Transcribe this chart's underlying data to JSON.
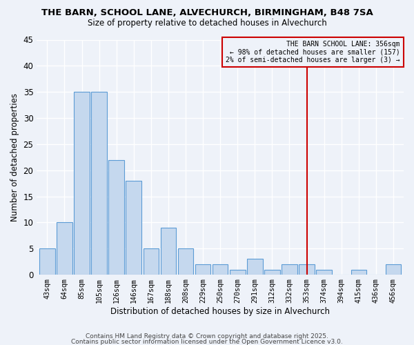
{
  "title_line1": "THE BARN, SCHOOL LANE, ALVECHURCH, BIRMINGHAM, B48 7SA",
  "title_line2": "Size of property relative to detached houses in Alvechurch",
  "xlabel": "Distribution of detached houses by size in Alvechurch",
  "ylabel": "Number of detached properties",
  "bar_labels": [
    "43sqm",
    "64sqm",
    "85sqm",
    "105sqm",
    "126sqm",
    "146sqm",
    "167sqm",
    "188sqm",
    "208sqm",
    "229sqm",
    "250sqm",
    "270sqm",
    "291sqm",
    "312sqm",
    "332sqm",
    "353sqm",
    "374sqm",
    "394sqm",
    "415sqm",
    "436sqm",
    "456sqm"
  ],
  "bar_values": [
    5,
    10,
    35,
    35,
    22,
    18,
    5,
    9,
    5,
    2,
    2,
    1,
    3,
    1,
    2,
    2,
    1,
    0,
    1,
    0,
    2
  ],
  "bar_color": "#c5d8ee",
  "bar_edge_color": "#5b9bd5",
  "vline_index": 15,
  "vline_color": "#cc0000",
  "annotation_title": "THE BARN SCHOOL LANE: 356sqm",
  "annotation_line1": "← 98% of detached houses are smaller (157)",
  "annotation_line2": "2% of semi-detached houses are larger (3) →",
  "background_color": "#eef2f9",
  "grid_color": "#ffffff",
  "ylim": [
    0,
    45
  ],
  "yticks": [
    0,
    5,
    10,
    15,
    20,
    25,
    30,
    35,
    40,
    45
  ],
  "footer_line1": "Contains HM Land Registry data © Crown copyright and database right 2025.",
  "footer_line2": "Contains public sector information licensed under the Open Government Licence v3.0."
}
